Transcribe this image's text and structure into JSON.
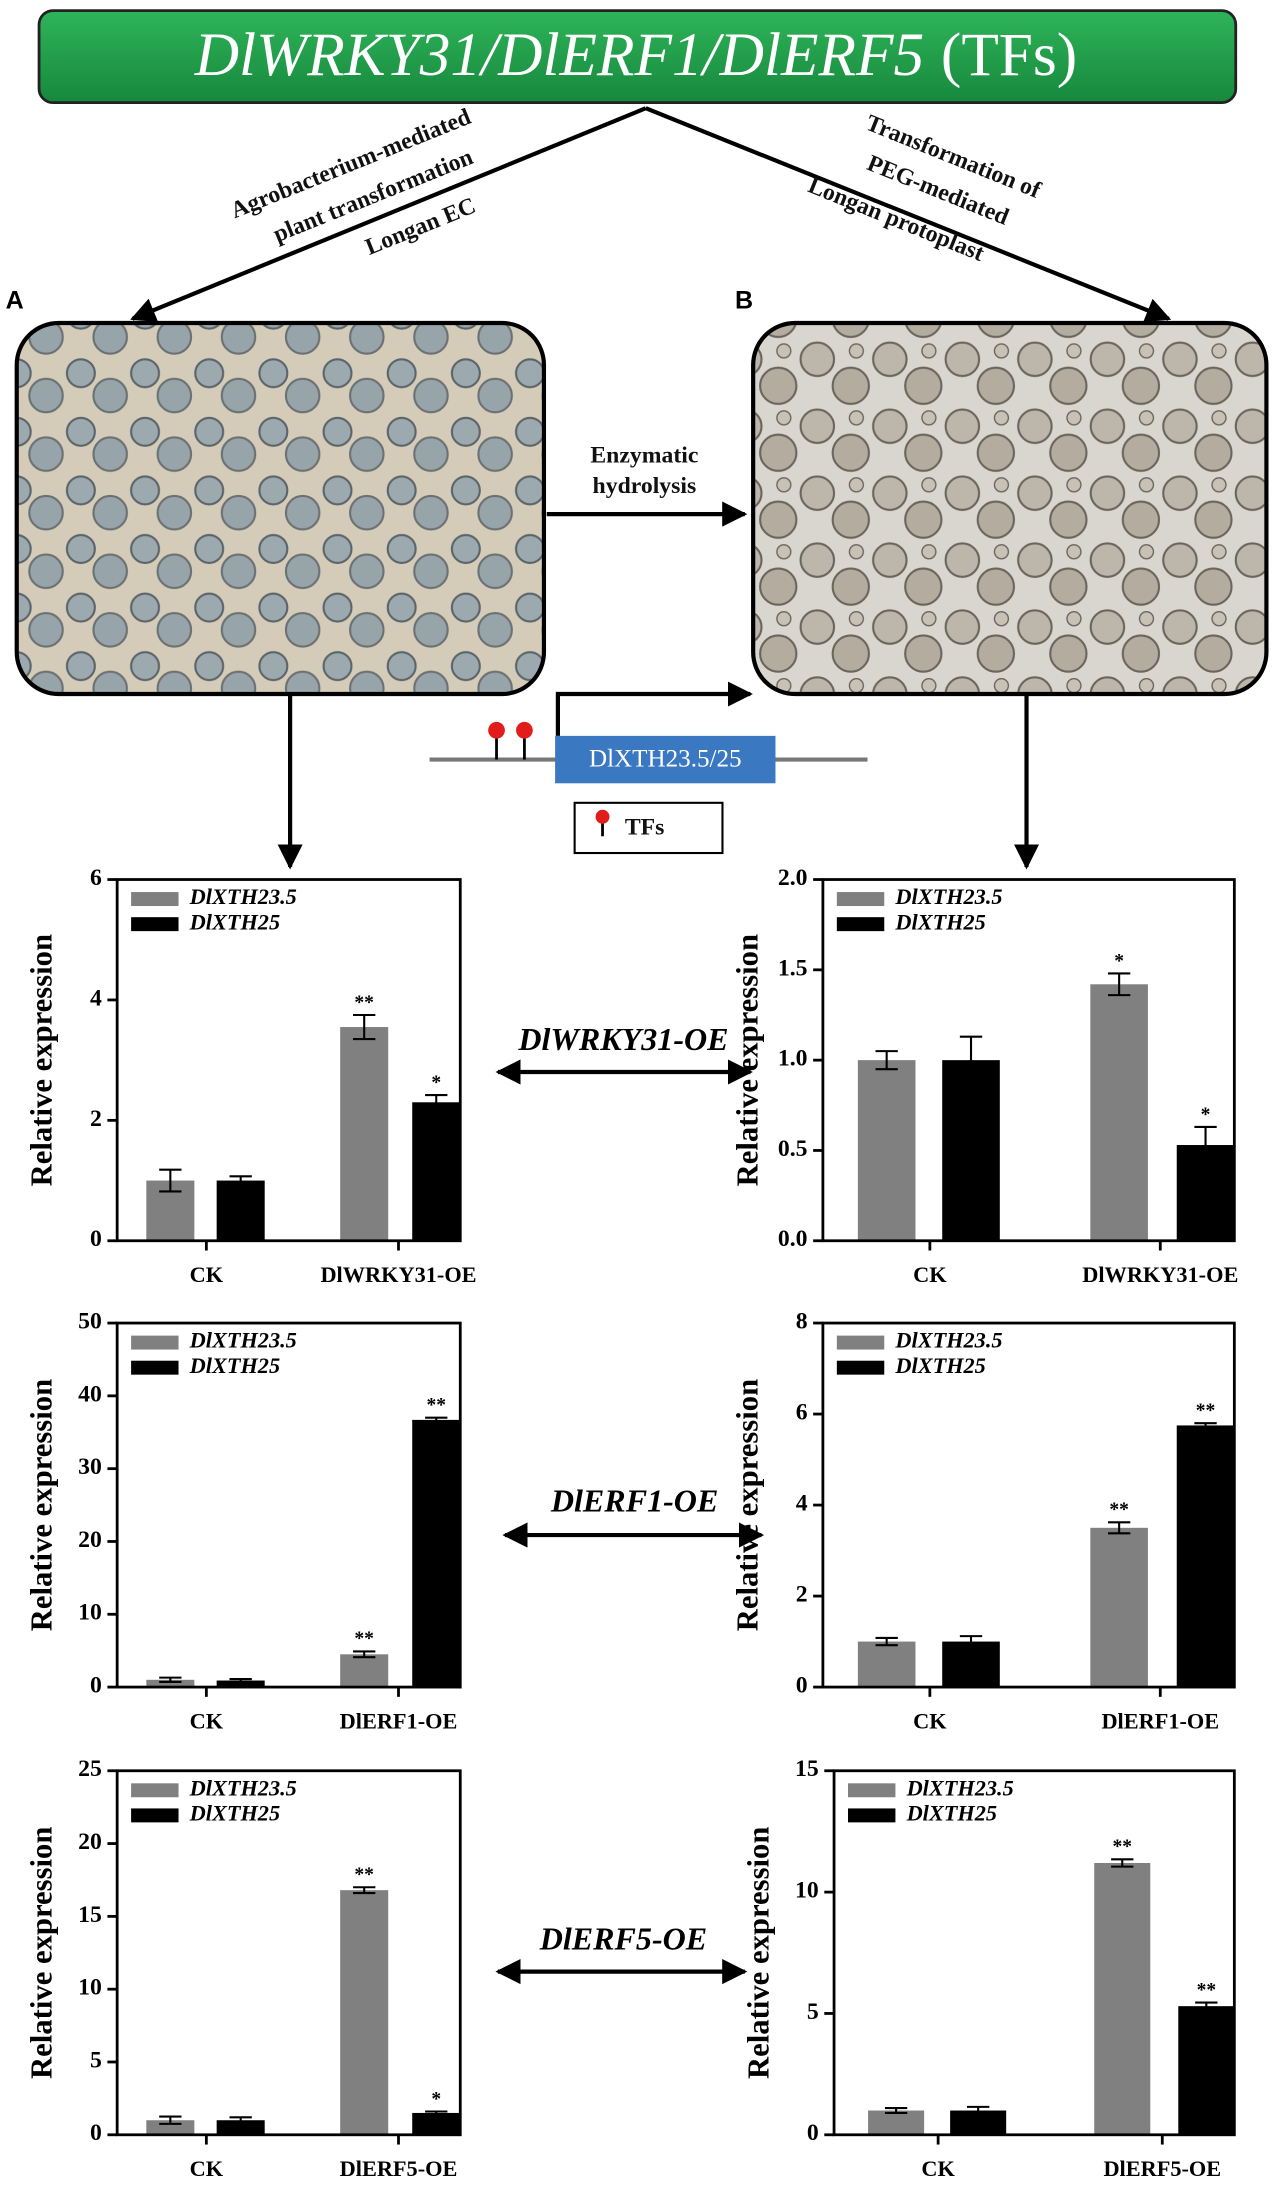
{
  "diagram": {
    "banner": {
      "genes": "DlWRKY31/DlERF1/DlERF5",
      "suffix": "(TFs)"
    },
    "left_route": [
      "Agrobacterium-mediated",
      "plant transformation",
      "Longan EC"
    ],
    "right_route": [
      "Transformation of",
      "PEG-mediated",
      "Longan protoplast"
    ],
    "panel_a": "A",
    "panel_b": "B",
    "step": [
      "Enzymatic",
      "hydrolysis"
    ],
    "promoter_gene": "DlXTH23.5/25",
    "tf_legend": "TFs",
    "comparisons": [
      "DlWRKY31-OE",
      "DlERF1-OE",
      "DlERF5-OE"
    ]
  },
  "chart_data": [
    {
      "type": "bar",
      "ylabel": "Relative expression",
      "categories": [
        "CK",
        "DlWRKY31-OE"
      ],
      "ylim": [
        0,
        6
      ],
      "yticks": [
        0,
        2,
        4,
        6
      ],
      "series": [
        {
          "name": "DlXTH23.5",
          "color": "#808080",
          "values": [
            1.0,
            3.55
          ],
          "errors": [
            0.18,
            0.2
          ],
          "significance": [
            null,
            "**"
          ]
        },
        {
          "name": "DlXTH25",
          "color": "#000000",
          "values": [
            1.0,
            2.3
          ],
          "errors": [
            0.07,
            0.12
          ],
          "significance": [
            null,
            "*"
          ]
        }
      ]
    },
    {
      "type": "bar",
      "ylabel": "Relative expression",
      "categories": [
        "CK",
        "DlWRKY31-OE"
      ],
      "ylim": [
        0,
        2
      ],
      "yticks": [
        {
          "value": 0,
          "label": "0.0"
        },
        {
          "value": 0.5,
          "label": "0.5"
        },
        {
          "value": 1,
          "label": "1.0"
        },
        {
          "value": 1.5,
          "label": "1.5"
        },
        {
          "value": 2,
          "label": "2.0"
        }
      ],
      "series": [
        {
          "name": "DlXTH23.5",
          "color": "#808080",
          "values": [
            1.0,
            1.42
          ],
          "errors": [
            0.05,
            0.06
          ],
          "significance": [
            null,
            "*"
          ]
        },
        {
          "name": "DlXTH25",
          "color": "#000000",
          "values": [
            1.0,
            0.53
          ],
          "errors": [
            0.13,
            0.1
          ],
          "significance": [
            null,
            "*"
          ]
        }
      ]
    },
    {
      "type": "bar",
      "ylabel": "Relative expression",
      "categories": [
        "CK",
        "DlERF1-OE"
      ],
      "ylim": [
        0,
        50
      ],
      "yticks": [
        0,
        10,
        20,
        30,
        40,
        50
      ],
      "series": [
        {
          "name": "DlXTH23.5",
          "color": "#808080",
          "values": [
            1.0,
            4.5
          ],
          "errors": [
            0.3,
            0.4
          ],
          "significance": [
            null,
            "**"
          ]
        },
        {
          "name": "DlXTH25",
          "color": "#000000",
          "values": [
            0.9,
            36.7
          ],
          "errors": [
            0.2,
            0.3
          ],
          "significance": [
            null,
            "**"
          ]
        }
      ]
    },
    {
      "type": "bar",
      "ylabel": "Relative expression",
      "categories": [
        "CK",
        "DlERF1-OE"
      ],
      "ylim": [
        0,
        8
      ],
      "yticks": [
        0,
        2,
        4,
        6,
        8
      ],
      "series": [
        {
          "name": "DlXTH23.5",
          "color": "#808080",
          "values": [
            1.0,
            3.5
          ],
          "errors": [
            0.08,
            0.12
          ],
          "significance": [
            null,
            "**"
          ]
        },
        {
          "name": "DlXTH25",
          "color": "#000000",
          "values": [
            1.0,
            5.75
          ],
          "errors": [
            0.12,
            0.05
          ],
          "significance": [
            null,
            "**"
          ]
        }
      ]
    },
    {
      "type": "bar",
      "ylabel": "Relative expression",
      "categories": [
        "CK",
        "DlERF5-OE"
      ],
      "ylim": [
        0,
        25
      ],
      "yticks": [
        0,
        5,
        10,
        15,
        20,
        25
      ],
      "series": [
        {
          "name": "DlXTH23.5",
          "color": "#808080",
          "values": [
            1.0,
            16.8
          ],
          "errors": [
            0.25,
            0.2
          ],
          "significance": [
            null,
            "**"
          ]
        },
        {
          "name": "DlXTH25",
          "color": "#000000",
          "values": [
            1.0,
            1.5
          ],
          "errors": [
            0.2,
            0.1
          ],
          "significance": [
            null,
            "*"
          ]
        }
      ]
    },
    {
      "type": "bar",
      "ylabel": "Relative expression",
      "categories": [
        "CK",
        "DlERF5-OE"
      ],
      "ylim": [
        0,
        15
      ],
      "yticks": [
        0,
        5,
        10,
        15
      ],
      "series": [
        {
          "name": "DlXTH23.5",
          "color": "#808080",
          "values": [
            1.0,
            11.2
          ],
          "errors": [
            0.1,
            0.15
          ],
          "significance": [
            null,
            "**"
          ]
        },
        {
          "name": "DlXTH25",
          "color": "#000000",
          "values": [
            1.0,
            5.3
          ],
          "errors": [
            0.15,
            0.15
          ],
          "significance": [
            null,
            "**"
          ]
        }
      ]
    }
  ]
}
